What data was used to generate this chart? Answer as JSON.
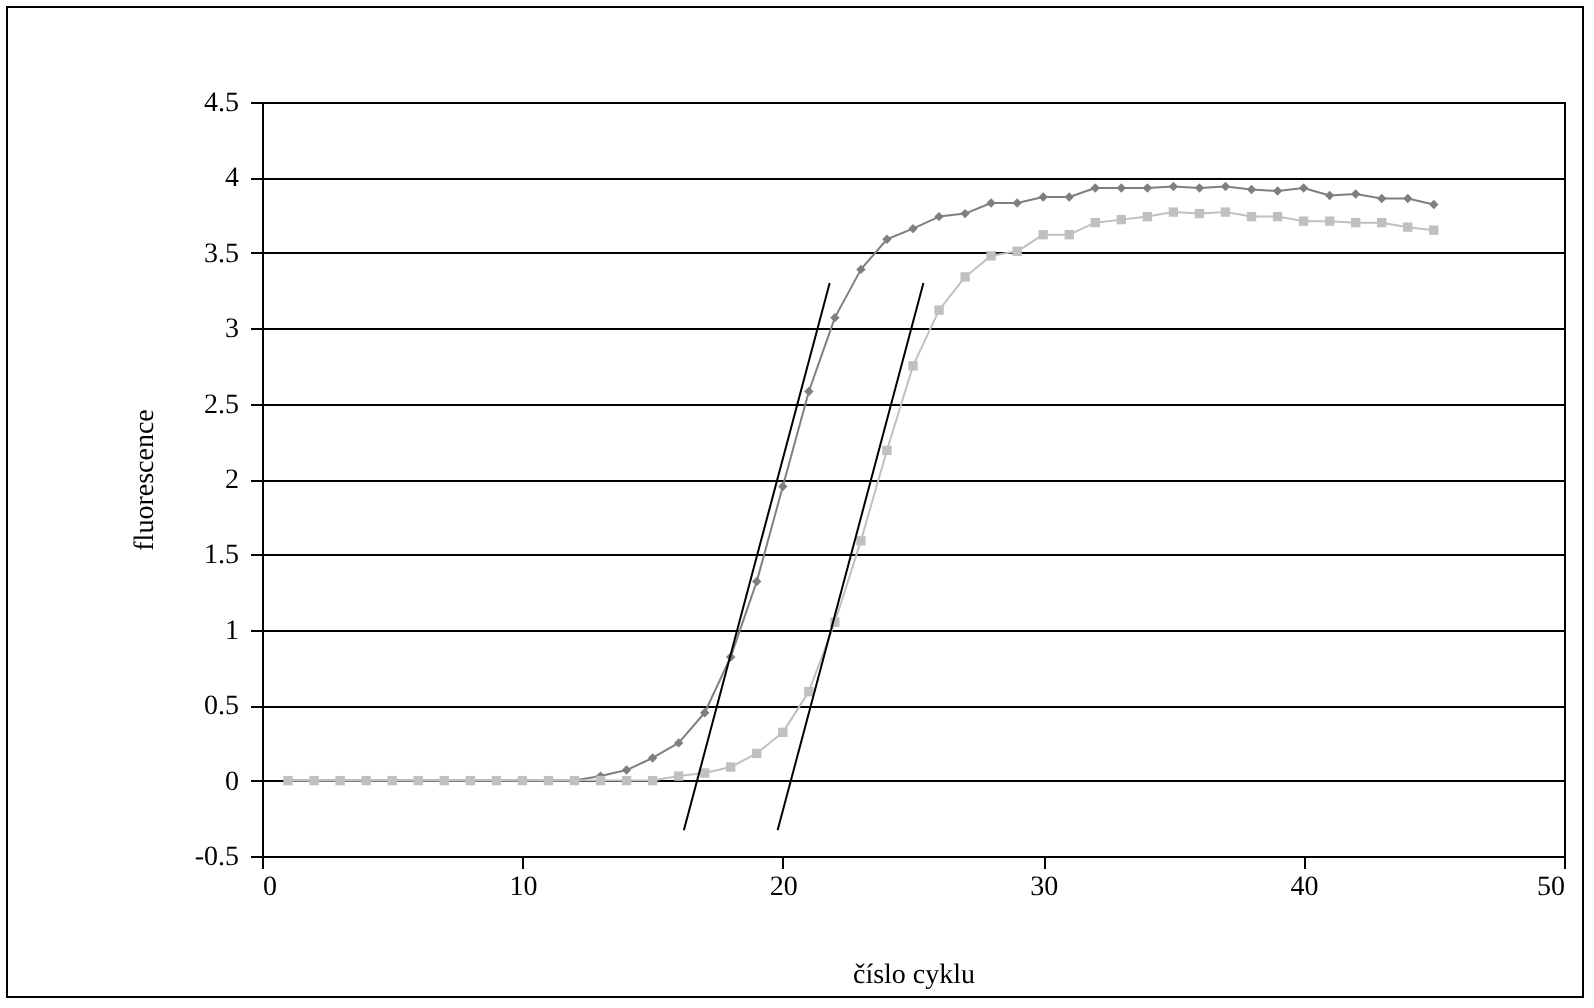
{
  "chart_data": {
    "type": "line",
    "xlabel": "číslo cyklu",
    "ylabel": "fluorescence",
    "x": [
      1,
      2,
      3,
      4,
      5,
      6,
      7,
      8,
      9,
      10,
      11,
      12,
      13,
      14,
      15,
      16,
      17,
      18,
      19,
      20,
      21,
      22,
      23,
      24,
      25,
      26,
      27,
      28,
      29,
      30,
      31,
      32,
      33,
      34,
      35,
      36,
      37,
      38,
      39,
      40,
      41,
      42,
      43,
      44,
      45
    ],
    "series": [
      {
        "color": "#7f7f7f",
        "marker": "diamond",
        "values": [
          0,
          0,
          0,
          0,
          0,
          0,
          0,
          0,
          0,
          0,
          0,
          0,
          0.03,
          0.07,
          0.15,
          0.25,
          0.45,
          0.82,
          1.32,
          1.95,
          2.58,
          3.07,
          3.39,
          3.59,
          3.66,
          3.74,
          3.76,
          3.83,
          3.83,
          3.87,
          3.87,
          3.93,
          3.93,
          3.93,
          3.94,
          3.93,
          3.94,
          3.92,
          3.91,
          3.93,
          3.88,
          3.89,
          3.86,
          3.86,
          3.82
        ]
      },
      {
        "color": "#c0c0c0",
        "marker": "square",
        "values": [
          0,
          0,
          0,
          0,
          0,
          0,
          0,
          0,
          0,
          0,
          0,
          0,
          0,
          0,
          0,
          0.03,
          0.05,
          0.09,
          0.18,
          0.32,
          0.59,
          1.05,
          1.59,
          2.19,
          2.75,
          3.12,
          3.34,
          3.48,
          3.51,
          3.62,
          3.62,
          3.7,
          3.72,
          3.74,
          3.77,
          3.76,
          3.77,
          3.74,
          3.74,
          3.71,
          3.71,
          3.7,
          3.7,
          3.67,
          3.65
        ]
      },
      {
        "type": "line",
        "color": "#000000",
        "marker": "none",
        "x": [
          16.2,
          21.8
        ],
        "values": [
          -0.33,
          3.3
        ]
      },
      {
        "type": "line",
        "color": "#000000",
        "marker": "none",
        "x": [
          19.8,
          25.4
        ],
        "values": [
          -0.33,
          3.3
        ]
      }
    ],
    "xlim": [
      0,
      50
    ],
    "xticks": [
      0,
      10,
      20,
      30,
      40,
      50
    ],
    "ylim": [
      -0.5,
      4.5
    ],
    "yticks": [
      -0.5,
      0,
      0.5,
      1,
      1.5,
      2,
      2.5,
      3,
      3.5,
      4,
      4.5
    ],
    "grid": "y"
  }
}
